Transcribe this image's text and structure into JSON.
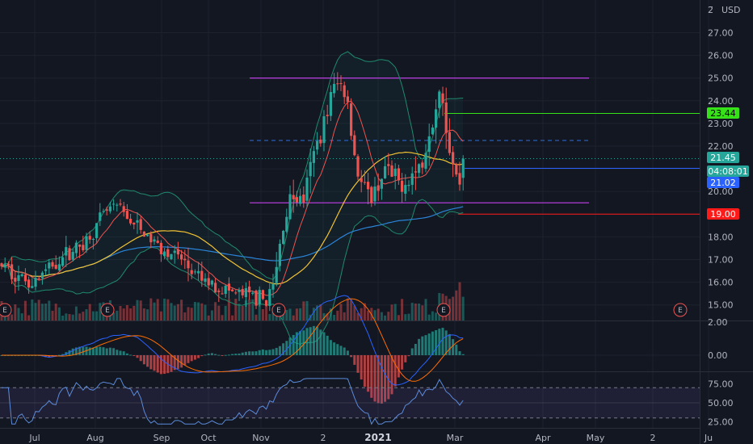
{
  "header": {
    "currency": "USD",
    "scale_glyph": "2̈"
  },
  "colors": {
    "background": "#131722",
    "up": "#26a69a",
    "down": "#ef5350",
    "magenta_line": "#b03cd6",
    "green_line": "#36e11a",
    "red_line": "#ff1a1a",
    "blue_line": "#2962ff",
    "dashed_line": "#2f6cd6",
    "bb": "#1f8a6c",
    "ma_fast": "#ef5350",
    "ma_mid": "#f2c232",
    "ma_slow": "#2a84d8",
    "macd": "#2962ff",
    "signal": "#ff6d00",
    "rsi": "#7e57c2",
    "rsi_line": "#5b8bd9"
  },
  "price_axis": {
    "ticks": [
      "27.00",
      "26.00",
      "25.00",
      "24.00",
      "23.00",
      "22.00",
      "20.00",
      "18.00",
      "17.00",
      "16.00",
      "15.00"
    ]
  },
  "price_labels": [
    {
      "text": "23.44",
      "bg": "#36e11a",
      "fg": "#000000"
    },
    {
      "text": "21.45",
      "bg": "#26a69a",
      "fg": "#ffffff"
    },
    {
      "text": "04:08:01",
      "bg": "#26a69a",
      "fg": "#ffffff"
    },
    {
      "text": "21.02",
      "bg": "#2962ff",
      "fg": "#ffffff"
    },
    {
      "text": "19.00",
      "bg": "#ff1a1a",
      "fg": "#ffffff"
    }
  ],
  "macd_axis": {
    "ticks": [
      "2.00",
      "0.00"
    ]
  },
  "rsi_axis": {
    "ticks": [
      "75.00",
      "50.00",
      "25.00"
    ]
  },
  "time_axis": {
    "labels": [
      "Jul",
      "Aug",
      "Sep",
      "Oct",
      "Nov",
      "2",
      "2021",
      "Mar",
      "Apr",
      "May",
      "2",
      "Ju"
    ],
    "bold": "2021"
  },
  "earnings_marker": "E",
  "chart_data": {
    "type": "candlestick",
    "symbol": "",
    "currency": "USD",
    "ylim": [
      14.5,
      27.5
    ],
    "current_price": 21.45,
    "countdown": "04:08:01",
    "horizontal_levels": [
      {
        "price": 25.0,
        "color": "magenta"
      },
      {
        "price": 22.25,
        "color": "blue-dashed"
      },
      {
        "price": 19.5,
        "color": "magenta"
      },
      {
        "price": 23.44,
        "color": "green",
        "label": "23.44"
      },
      {
        "price": 21.02,
        "color": "blue",
        "label": "21.02"
      },
      {
        "price": 19.0,
        "color": "red",
        "label": "19.00"
      }
    ],
    "earnings_events": [
      "Jul",
      "Aug",
      "Nov",
      "Feb",
      "May"
    ],
    "macd_range": [
      -1.2,
      2.2
    ],
    "rsi_range": [
      20,
      85
    ],
    "rsi_band": [
      30,
      70
    ]
  }
}
